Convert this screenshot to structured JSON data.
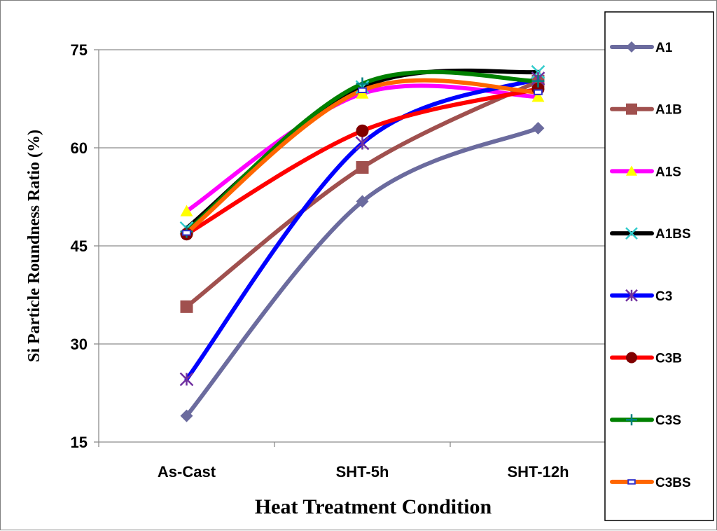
{
  "chart_data": {
    "type": "line",
    "title": "",
    "xlabel": "Heat Treatment Condition",
    "ylabel": "Si Particle Roundness Ratio (%)",
    "categories": [
      "As-Cast",
      "SHT-5h",
      "SHT-12h"
    ],
    "ylim": [
      15,
      75
    ],
    "yticks": [
      15,
      30,
      45,
      60,
      75
    ],
    "grid": "horizontal",
    "legend_position": "right",
    "series": [
      {
        "name": "A1",
        "values": [
          19.0,
          51.8,
          63.0
        ],
        "color": "#6b6b9e",
        "marker": "diamond",
        "marker_color": "#6b6b9e"
      },
      {
        "name": "A1B",
        "values": [
          35.7,
          57.0,
          70.2
        ],
        "color": "#a0504e",
        "marker": "square",
        "marker_color": "#a0504e"
      },
      {
        "name": "A1S",
        "values": [
          50.3,
          68.3,
          67.8
        ],
        "color": "#ff00ff",
        "marker": "triangle",
        "marker_color": "#ffff00"
      },
      {
        "name": "A1BS",
        "values": [
          47.7,
          69.3,
          71.6
        ],
        "color": "#000000",
        "marker": "x",
        "marker_color": "#33cccc"
      },
      {
        "name": "C3",
        "values": [
          24.6,
          60.7,
          70.6
        ],
        "color": "#0000ff",
        "marker": "asterisk",
        "marker_color": "#7030a0"
      },
      {
        "name": "C3B",
        "values": [
          46.8,
          62.6,
          69.0
        ],
        "color": "#ff0000",
        "marker": "circle",
        "marker_color": "#800000"
      },
      {
        "name": "C3S",
        "values": [
          47.2,
          69.8,
          70.2
        ],
        "color": "#008000",
        "marker": "plus",
        "marker_color": "#008080"
      },
      {
        "name": "C3BS",
        "values": [
          47.0,
          68.8,
          68.5
        ],
        "color": "#ff6600",
        "marker": "bar",
        "marker_color": "#3333cc"
      }
    ]
  }
}
